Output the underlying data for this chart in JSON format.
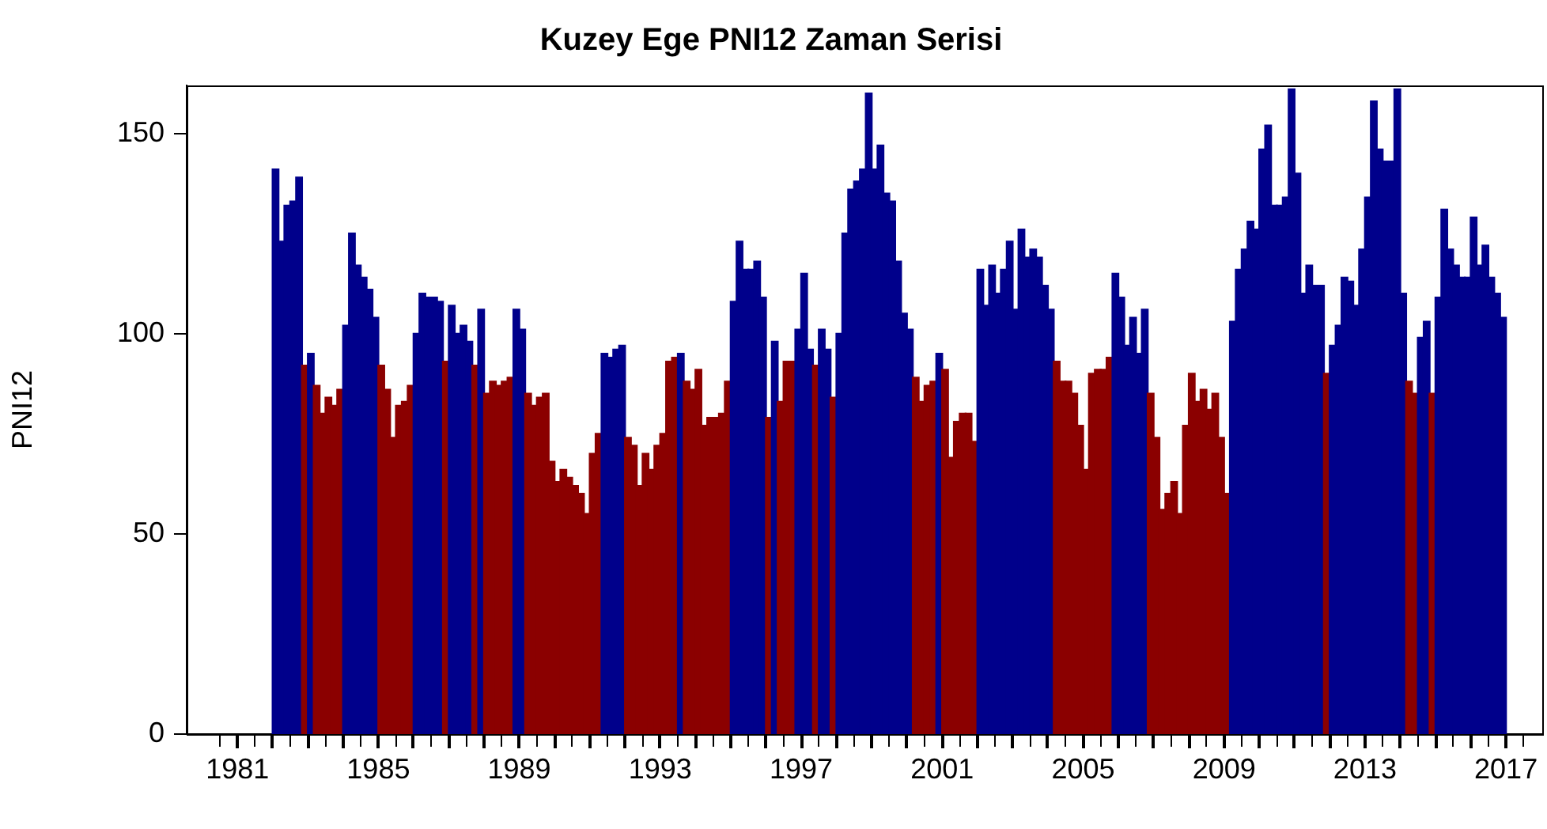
{
  "chart_data": {
    "type": "bar",
    "title": "Kuzey Ege PNI12 Zaman Serisi",
    "ylabel": "PNI12",
    "x": [
      1982.083,
      1982.25,
      1982.417,
      1982.583,
      1982.75,
      1982.917,
      1983.083,
      1983.25,
      1983.417,
      1983.583,
      1983.75,
      1983.917,
      1984.083,
      1984.25,
      1984.417,
      1984.583,
      1984.75,
      1984.917,
      1985.083,
      1985.25,
      1985.417,
      1985.583,
      1985.75,
      1985.917,
      1986.083,
      1986.25,
      1986.417,
      1986.583,
      1986.75,
      1986.917,
      1987.083,
      1987.25,
      1987.417,
      1987.583,
      1987.75,
      1987.917,
      1988.083,
      1988.25,
      1988.417,
      1988.583,
      1988.75,
      1988.917,
      1989.083,
      1989.25,
      1989.417,
      1989.583,
      1989.75,
      1989.917,
      1990.083,
      1990.25,
      1990.417,
      1990.583,
      1990.75,
      1990.917,
      1991.083,
      1991.25,
      1991.417,
      1991.583,
      1991.75,
      1991.917,
      1992.083,
      1992.25,
      1992.417,
      1992.583,
      1992.75,
      1992.917,
      1993.083,
      1993.25,
      1993.417,
      1993.583,
      1993.75,
      1993.917,
      1994.083,
      1994.25,
      1994.417,
      1994.583,
      1994.75,
      1994.917,
      1995.083,
      1995.25,
      1995.417,
      1995.583,
      1995.75,
      1995.917,
      1996.083,
      1996.25,
      1996.417,
      1996.583,
      1996.75,
      1996.917,
      1997.083,
      1997.25,
      1997.417,
      1997.583,
      1997.75,
      1997.917,
      1998.083,
      1998.25,
      1998.417,
      1998.583,
      1998.75,
      1998.917,
      1999.083,
      1999.25,
      1999.417,
      1999.583,
      1999.75,
      1999.917,
      2000.083,
      2000.25,
      2000.417,
      2000.583,
      2000.75,
      2000.917,
      2001.083,
      2001.25,
      2001.417,
      2001.583,
      2001.75,
      2001.917,
      2002.083,
      2002.25,
      2002.417,
      2002.583,
      2002.75,
      2002.917,
      2003.083,
      2003.25,
      2003.417,
      2003.583,
      2003.75,
      2003.917,
      2004.083,
      2004.25,
      2004.417,
      2004.583,
      2004.75,
      2004.917,
      2005.083,
      2005.25,
      2005.417,
      2005.583,
      2005.75,
      2005.917,
      2006.083,
      2006.25,
      2006.417,
      2006.583,
      2006.75,
      2006.917,
      2007.083,
      2007.25,
      2007.417,
      2007.583,
      2007.75,
      2007.917,
      2008.083,
      2008.25,
      2008.417,
      2008.583,
      2008.75,
      2008.917,
      2009.083,
      2009.25,
      2009.417,
      2009.583,
      2009.75,
      2009.917,
      2010.083,
      2010.25,
      2010.417,
      2010.583,
      2010.75,
      2010.917,
      2011.083,
      2011.25,
      2011.417,
      2011.583,
      2011.75,
      2011.917,
      2012.083,
      2012.25,
      2012.417,
      2012.583,
      2012.75,
      2012.917,
      2013.083,
      2013.25,
      2013.417,
      2013.583,
      2013.75,
      2013.917,
      2014.083,
      2014.25,
      2014.417,
      2014.583,
      2014.75,
      2014.917,
      2015.083,
      2015.25,
      2015.417,
      2015.583,
      2015.75,
      2015.917,
      2016.083,
      2016.25,
      2016.417,
      2016.583,
      2016.75,
      2016.917
    ],
    "values": [
      141,
      123,
      132,
      133,
      139,
      92,
      95,
      87,
      80,
      84,
      82,
      86,
      102,
      125,
      117,
      114,
      111,
      104,
      92,
      86,
      74,
      82,
      83,
      87,
      100,
      110,
      109,
      109,
      108,
      93,
      107,
      100,
      102,
      98,
      92,
      106,
      85,
      88,
      87,
      88,
      89,
      106,
      101,
      85,
      82,
      84,
      85,
      68,
      63,
      66,
      64,
      62,
      60,
      55,
      70,
      75,
      95,
      94,
      96,
      97,
      74,
      72,
      62,
      70,
      66,
      72,
      75,
      93,
      94,
      95,
      88,
      86,
      91,
      77,
      79,
      79,
      80,
      88,
      108,
      123,
      116,
      116,
      118,
      109,
      79,
      98,
      83,
      93,
      93,
      101,
      115,
      96,
      92,
      101,
      96,
      84,
      100,
      125,
      136,
      138,
      141,
      160,
      141,
      147,
      135,
      133,
      118,
      105,
      101,
      89,
      83,
      87,
      88,
      95,
      91,
      69,
      78,
      80,
      80,
      73,
      116,
      107,
      117,
      110,
      116,
      123,
      106,
      126,
      119,
      121,
      119,
      112,
      106,
      93,
      88,
      88,
      85,
      77,
      66,
      90,
      91,
      91,
      94,
      115,
      109,
      97,
      104,
      95,
      106,
      85,
      74,
      56,
      60,
      63,
      55,
      77,
      90,
      83,
      86,
      81,
      85,
      74,
      60,
      103,
      116,
      121,
      128,
      126,
      146,
      152,
      132,
      132,
      134,
      161,
      140,
      110,
      117,
      112,
      112,
      90,
      97,
      102,
      114,
      113,
      107,
      121,
      134,
      158,
      146,
      143,
      143,
      161,
      110,
      88,
      85,
      99,
      103,
      85,
      109,
      131,
      121,
      117,
      114,
      114,
      129,
      117,
      122,
      114,
      110,
      104
    ],
    "colors": [
      "#00008b",
      "#00008b",
      "#00008b",
      "#00008b",
      "#00008b",
      "#8b0000",
      "#00008b",
      "#8b0000",
      "#8b0000",
      "#8b0000",
      "#8b0000",
      "#8b0000",
      "#00008b",
      "#00008b",
      "#00008b",
      "#00008b",
      "#00008b",
      "#00008b",
      "#8b0000",
      "#8b0000",
      "#8b0000",
      "#8b0000",
      "#8b0000",
      "#8b0000",
      "#00008b",
      "#00008b",
      "#00008b",
      "#00008b",
      "#00008b",
      "#8b0000",
      "#00008b",
      "#00008b",
      "#00008b",
      "#00008b",
      "#8b0000",
      "#00008b",
      "#8b0000",
      "#8b0000",
      "#8b0000",
      "#8b0000",
      "#8b0000",
      "#00008b",
      "#00008b",
      "#8b0000",
      "#8b0000",
      "#8b0000",
      "#8b0000",
      "#8b0000",
      "#8b0000",
      "#8b0000",
      "#8b0000",
      "#8b0000",
      "#8b0000",
      "#8b0000",
      "#8b0000",
      "#8b0000",
      "#00008b",
      "#00008b",
      "#00008b",
      "#00008b",
      "#8b0000",
      "#8b0000",
      "#8b0000",
      "#8b0000",
      "#8b0000",
      "#8b0000",
      "#8b0000",
      "#8b0000",
      "#8b0000",
      "#00008b",
      "#8b0000",
      "#8b0000",
      "#8b0000",
      "#8b0000",
      "#8b0000",
      "#8b0000",
      "#8b0000",
      "#8b0000",
      "#00008b",
      "#00008b",
      "#00008b",
      "#00008b",
      "#00008b",
      "#00008b",
      "#8b0000",
      "#00008b",
      "#8b0000",
      "#8b0000",
      "#8b0000",
      "#00008b",
      "#00008b",
      "#00008b",
      "#8b0000",
      "#00008b",
      "#00008b",
      "#8b0000",
      "#00008b",
      "#00008b",
      "#00008b",
      "#00008b",
      "#00008b",
      "#00008b",
      "#00008b",
      "#00008b",
      "#00008b",
      "#00008b",
      "#00008b",
      "#00008b",
      "#00008b",
      "#8b0000",
      "#8b0000",
      "#8b0000",
      "#8b0000",
      "#00008b",
      "#8b0000",
      "#8b0000",
      "#8b0000",
      "#8b0000",
      "#8b0000",
      "#8b0000",
      "#00008b",
      "#00008b",
      "#00008b",
      "#00008b",
      "#00008b",
      "#00008b",
      "#00008b",
      "#00008b",
      "#00008b",
      "#00008b",
      "#00008b",
      "#00008b",
      "#00008b",
      "#8b0000",
      "#8b0000",
      "#8b0000",
      "#8b0000",
      "#8b0000",
      "#8b0000",
      "#8b0000",
      "#8b0000",
      "#8b0000",
      "#8b0000",
      "#00008b",
      "#00008b",
      "#00008b",
      "#00008b",
      "#00008b",
      "#00008b",
      "#8b0000",
      "#8b0000",
      "#8b0000",
      "#8b0000",
      "#8b0000",
      "#8b0000",
      "#8b0000",
      "#8b0000",
      "#8b0000",
      "#8b0000",
      "#8b0000",
      "#8b0000",
      "#8b0000",
      "#8b0000",
      "#00008b",
      "#00008b",
      "#00008b",
      "#00008b",
      "#00008b",
      "#00008b",
      "#00008b",
      "#00008b",
      "#00008b",
      "#00008b",
      "#00008b",
      "#00008b",
      "#00008b",
      "#00008b",
      "#00008b",
      "#00008b",
      "#8b0000",
      "#00008b",
      "#00008b",
      "#00008b",
      "#00008b",
      "#00008b",
      "#00008b",
      "#00008b",
      "#00008b",
      "#00008b",
      "#00008b",
      "#00008b",
      "#00008b",
      "#00008b",
      "#8b0000",
      "#8b0000",
      "#00008b",
      "#00008b",
      "#8b0000",
      "#00008b",
      "#00008b",
      "#00008b",
      "#00008b",
      "#00008b",
      "#00008b",
      "#00008b",
      "#00008b",
      "#00008b",
      "#00008b",
      "#00008b",
      "#00008b"
    ],
    "xlim": [
      1979.56,
      2018.03
    ],
    "ylim": [
      0,
      162
    ],
    "xticks": [
      1981,
      {
        "value": 1982,
        "label": null
      },
      {
        "value": 1983,
        "label": null
      },
      {
        "value": 1984,
        "label": null
      },
      1985,
      {
        "value": 1986,
        "label": null
      },
      {
        "value": 1987,
        "label": null
      },
      {
        "value": 1988,
        "label": null
      },
      1989,
      {
        "value": 1990,
        "label": null
      },
      {
        "value": 1991,
        "label": null
      },
      {
        "value": 1992,
        "label": null
      },
      1993,
      {
        "value": 1994,
        "label": null
      },
      {
        "value": 1995,
        "label": null
      },
      {
        "value": 1996,
        "label": null
      },
      1997,
      {
        "value": 1998,
        "label": null
      },
      {
        "value": 1999,
        "label": null
      },
      {
        "value": 2000,
        "label": null
      },
      2001,
      {
        "value": 2002,
        "label": null
      },
      {
        "value": 2003,
        "label": null
      },
      {
        "value": 2004,
        "label": null
      },
      2005,
      {
        "value": 2006,
        "label": null
      },
      {
        "value": 2007,
        "label": null
      },
      {
        "value": 2008,
        "label": null
      },
      2009,
      {
        "value": 2010,
        "label": null
      },
      {
        "value": 2011,
        "label": null
      },
      {
        "value": 2012,
        "label": null
      },
      2013,
      {
        "value": 2014,
        "label": null
      },
      {
        "value": 2015,
        "label": null
      },
      {
        "value": 2016,
        "label": null
      },
      2017
    ],
    "yticks": [
      0,
      50,
      100,
      150
    ]
  }
}
